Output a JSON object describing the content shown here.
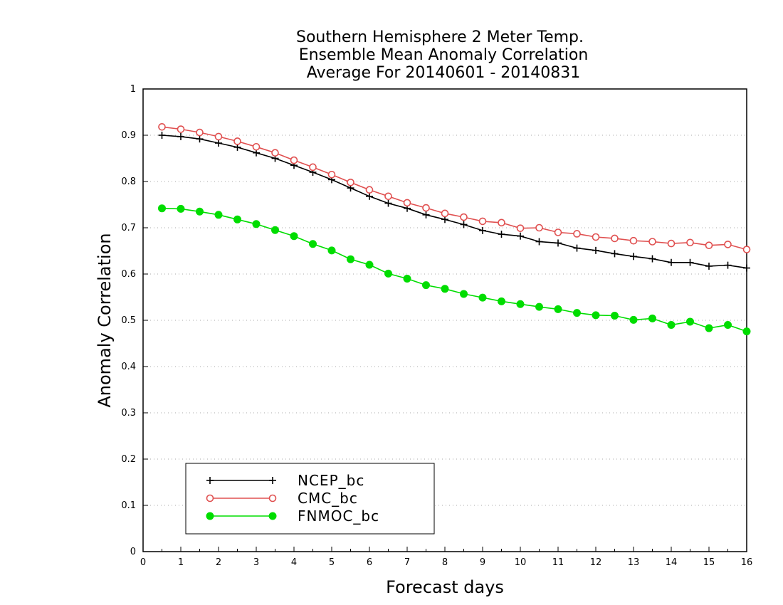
{
  "chart_data": {
    "type": "line",
    "title": [
      "Southern Hemisphere 2 Meter Temp.",
      "Ensemble Mean Anomaly Correlation",
      "Average For 20140601 - 20140831"
    ],
    "xlabel": "Forecast days",
    "ylabel": "Anomaly Correlation",
    "xlim": [
      0,
      16
    ],
    "ylim": [
      0,
      1
    ],
    "xticks": [
      "0",
      "1",
      "2",
      "3",
      "4",
      "5",
      "6",
      "7",
      "8",
      "9",
      "10",
      "11",
      "12",
      "13",
      "14",
      "15",
      "16"
    ],
    "yticks": [
      "0",
      "0.1",
      "0.2",
      "0.3",
      "0.4",
      "0.5",
      "0.6",
      "0.7",
      "0.8",
      "0.9",
      "1"
    ],
    "grid": true,
    "legend_position": "bottom-left",
    "x": [
      0.5,
      1,
      1.5,
      2,
      2.5,
      3,
      3.5,
      4,
      4.5,
      5,
      5.5,
      6,
      6.5,
      7,
      7.5,
      8,
      8.5,
      9,
      9.5,
      10,
      10.5,
      11,
      11.5,
      12,
      12.5,
      13,
      13.5,
      14,
      14.5,
      15,
      15.5,
      16
    ],
    "series": [
      {
        "name": "NCEP_bc",
        "color": "#000000",
        "marker": "plus",
        "values": [
          0.9,
          0.897,
          0.892,
          0.883,
          0.874,
          0.862,
          0.85,
          0.835,
          0.82,
          0.804,
          0.786,
          0.768,
          0.753,
          0.742,
          0.728,
          0.718,
          0.707,
          0.694,
          0.686,
          0.682,
          0.67,
          0.667,
          0.656,
          0.651,
          0.644,
          0.638,
          0.633,
          0.625,
          0.625,
          0.617,
          0.619,
          0.613
        ]
      },
      {
        "name": "CMC_bc",
        "color": "#e05050",
        "marker": "open-circle",
        "values": [
          0.918,
          0.913,
          0.906,
          0.897,
          0.887,
          0.875,
          0.862,
          0.846,
          0.831,
          0.815,
          0.798,
          0.782,
          0.768,
          0.754,
          0.743,
          0.731,
          0.723,
          0.714,
          0.711,
          0.699,
          0.7,
          0.69,
          0.687,
          0.68,
          0.677,
          0.672,
          0.67,
          0.666,
          0.668,
          0.662,
          0.664,
          0.653
        ]
      },
      {
        "name": "FNMOC_bc",
        "color": "#00dd00",
        "marker": "filled-circle",
        "values": [
          0.742,
          0.741,
          0.735,
          0.728,
          0.718,
          0.708,
          0.695,
          0.682,
          0.665,
          0.651,
          0.632,
          0.62,
          0.601,
          0.59,
          0.576,
          0.568,
          0.557,
          0.549,
          0.541,
          0.535,
          0.529,
          0.524,
          0.516,
          0.511,
          0.51,
          0.501,
          0.504,
          0.49,
          0.497,
          0.483,
          0.49,
          0.476
        ]
      }
    ]
  }
}
